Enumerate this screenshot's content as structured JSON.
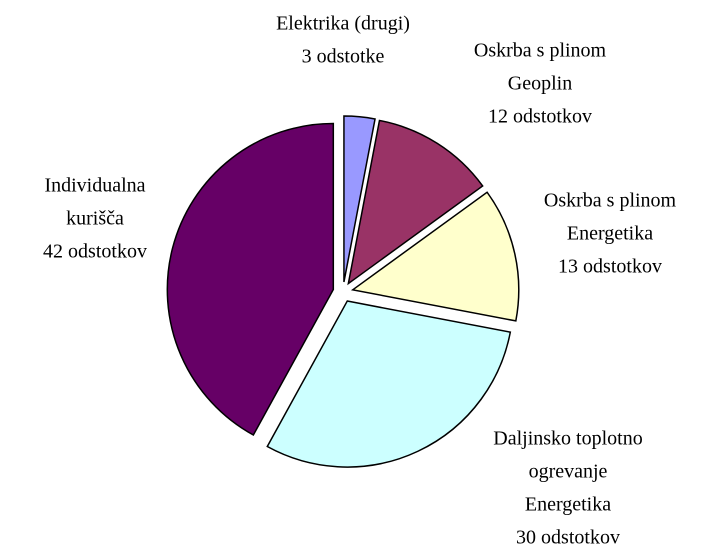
{
  "chart_data": {
    "type": "pie",
    "categories": [
      [
        "Elektrika (drugi)"
      ],
      [
        "Oskrba s plinom",
        "Geoplin"
      ],
      [
        "Oskrba s plinom",
        "Energetika"
      ],
      [
        "Daljinsko toplotno",
        "ogrevanje",
        "Energetika"
      ],
      [
        "Individualna",
        "kurišča"
      ]
    ],
    "values": [
      3,
      12,
      13,
      30,
      42
    ],
    "value_labels": [
      "3 odstotke",
      "12 odstotkov",
      "13 odstotkov",
      "30 odstotkov",
      "42 odstotkov"
    ],
    "colors": [
      "#9999ff",
      "#993366",
      "#ffffcc",
      "#ccffff",
      "#660066"
    ]
  }
}
